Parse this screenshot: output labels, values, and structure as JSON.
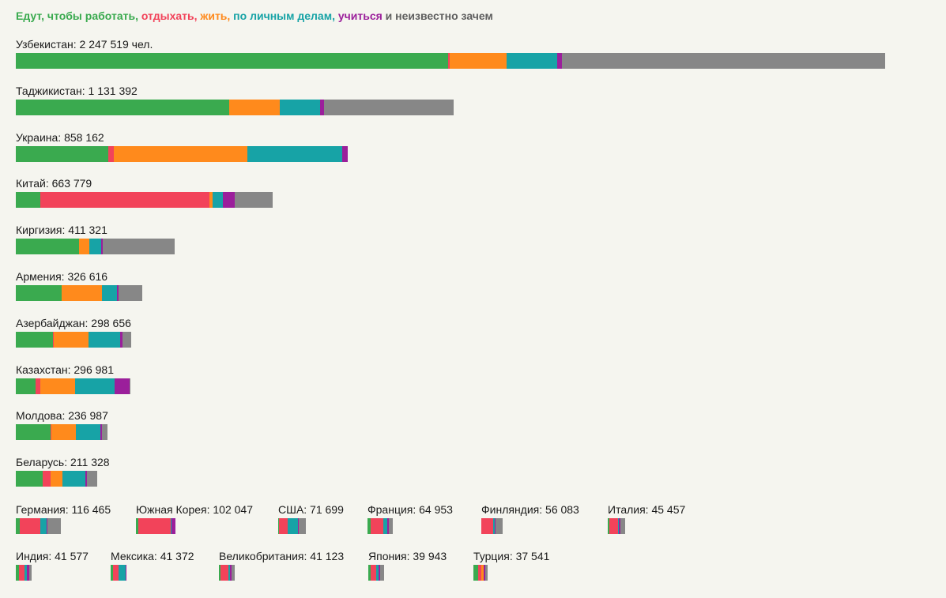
{
  "legend": [
    {
      "text": "Едут, чтобы работать,",
      "color": "#3aaa4f"
    },
    {
      "text": " отдыхать,",
      "color": "#f2435a"
    },
    {
      "text": " жить,",
      "color": "#ff8a1c"
    },
    {
      "text": " по личным делам,",
      "color": "#17a3a6"
    },
    {
      "text": " учиться",
      "color": "#9b1f9b"
    },
    {
      "text": " и неизвестно зачем",
      "color": "#5f5f5f"
    }
  ],
  "colors": {
    "work": "#3aaa4f",
    "rest": "#f2435a",
    "live": "#ff8a1c",
    "personal": "#17a3a6",
    "study": "#9b1f9b",
    "unknown": "#878787"
  },
  "chart_data": {
    "type": "bar",
    "orientation": "horizontal",
    "stacked": true,
    "categories_order": [
      "work",
      "rest",
      "live",
      "personal",
      "study",
      "unknown"
    ],
    "series_names": [
      "Едут, чтобы работать",
      "отдыхать",
      "жить",
      "по личным делам",
      "учиться",
      "и неизвестно зачем"
    ],
    "countries": [
      {
        "label": "Узбекистан: 2 247 519 чел.",
        "total": 2247519,
        "shares": [
          0.497,
          0.002,
          0.066,
          0.058,
          0.005,
          0.372
        ]
      },
      {
        "label": "Таджикистан: 1 131 392",
        "total": 1131392,
        "shares": [
          0.488,
          0.0,
          0.115,
          0.093,
          0.008,
          0.296
        ]
      },
      {
        "label": "Украина: 858 162",
        "total": 858162,
        "shares": [
          0.279,
          0.017,
          0.401,
          0.287,
          0.016,
          0.0
        ]
      },
      {
        "label": "Китай: 663 779",
        "total": 663779,
        "shares": [
          0.096,
          0.658,
          0.012,
          0.04,
          0.046,
          0.148
        ]
      },
      {
        "label": "Киргизия: 411 321",
        "total": 411321,
        "shares": [
          0.398,
          0.0,
          0.063,
          0.075,
          0.012,
          0.452
        ]
      },
      {
        "label": "Армения: 326 616",
        "total": 326616,
        "shares": [
          0.363,
          0.003,
          0.313,
          0.119,
          0.013,
          0.189
        ]
      },
      {
        "label": "Азербайджан: 298 656",
        "total": 298656,
        "shares": [
          0.319,
          0.007,
          0.306,
          0.272,
          0.02,
          0.076
        ]
      },
      {
        "label": "Казахстан: 296 981",
        "total": 296981,
        "shares": [
          0.17,
          0.042,
          0.306,
          0.34,
          0.132,
          0.01
        ]
      },
      {
        "label": "Молдова: 236 987",
        "total": 236987,
        "shares": [
          0.379,
          0.009,
          0.267,
          0.267,
          0.017,
          0.061
        ]
      },
      {
        "label": "Беларусь: 211 328",
        "total": 211328,
        "shares": [
          0.33,
          0.097,
          0.146,
          0.282,
          0.019,
          0.126
        ]
      },
      {
        "label": "Германия: 116 465",
        "total": 116465,
        "shares": [
          0.08,
          0.462,
          0.0,
          0.135,
          0.02,
          0.303
        ]
      },
      {
        "label": "Южная Корея: 102 047",
        "total": 102047,
        "shares": [
          0.057,
          0.82,
          0.0,
          0.034,
          0.089,
          0.0
        ]
      },
      {
        "label": "США: 71 699",
        "total": 71699,
        "shares": [
          0.025,
          0.304,
          0.0,
          0.374,
          0.05,
          0.247
        ]
      },
      {
        "label": "Франция: 64 953",
        "total": 64953,
        "shares": [
          0.13,
          0.5,
          0.0,
          0.15,
          0.07,
          0.15
        ]
      },
      {
        "label": "Финляндия: 56 083",
        "total": 56083,
        "shares": [
          0.0,
          0.55,
          0.0,
          0.06,
          0.04,
          0.35
        ]
      },
      {
        "label": "Италия: 45 457",
        "total": 45457,
        "shares": [
          0.1,
          0.5,
          0.0,
          0.05,
          0.05,
          0.3
        ]
      },
      {
        "label": "Индия: 41 577",
        "total": 41577,
        "shares": [
          0.2,
          0.35,
          0.0,
          0.15,
          0.15,
          0.15
        ]
      },
      {
        "label": "Мексика: 41 372",
        "total": 41372,
        "shares": [
          0.15,
          0.35,
          0.0,
          0.45,
          0.05,
          0.0
        ]
      },
      {
        "label": "Великобритания: 41 123",
        "total": 41123,
        "shares": [
          0.1,
          0.5,
          0.0,
          0.1,
          0.1,
          0.2
        ]
      },
      {
        "label": "Япония: 39 943",
        "total": 39943,
        "shares": [
          0.15,
          0.35,
          0.0,
          0.15,
          0.1,
          0.25
        ]
      },
      {
        "label": "Турция: 37 541",
        "total": 37541,
        "shares": [
          0.35,
          0.2,
          0.15,
          0.0,
          0.1,
          0.2
        ]
      }
    ]
  }
}
